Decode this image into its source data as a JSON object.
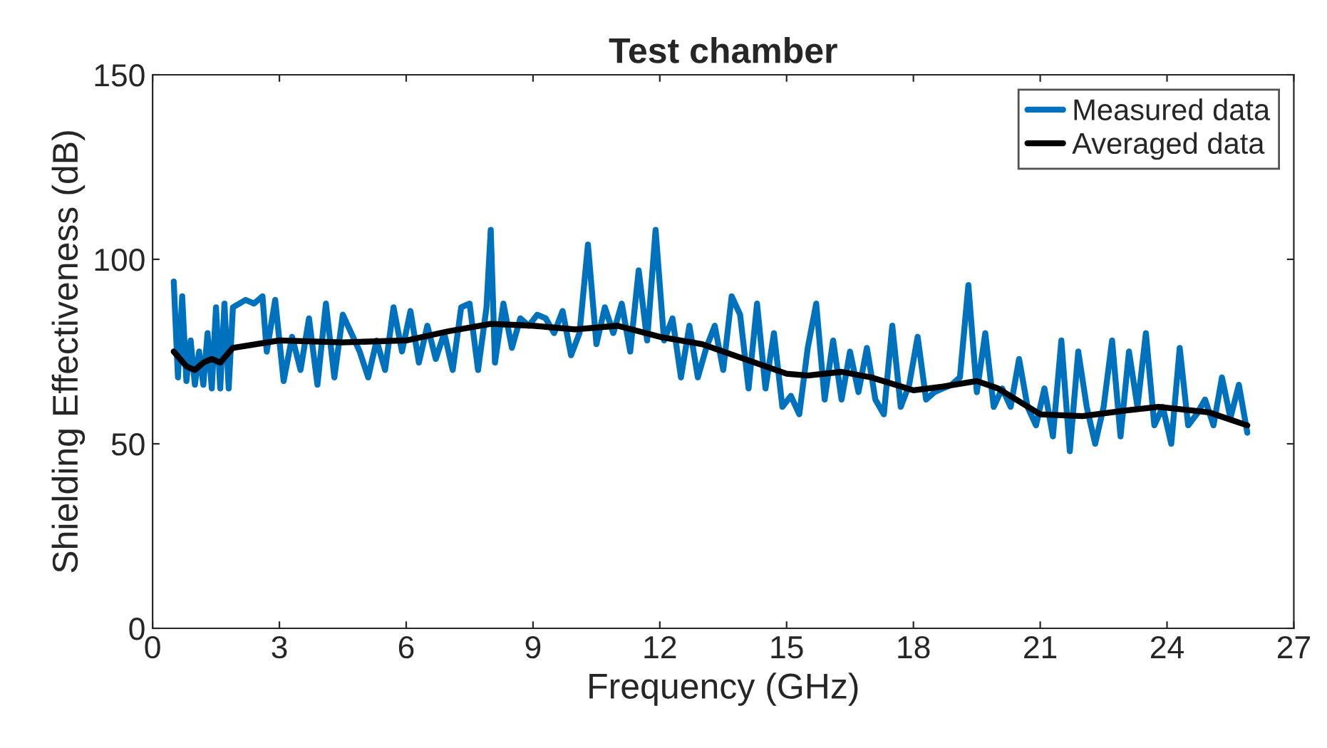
{
  "chart_data": {
    "type": "line",
    "title": "Test chamber",
    "xlabel": "Frequency (GHz)",
    "ylabel": "Shielding Effectiveness (dB)",
    "xlim": [
      0,
      27
    ],
    "xticks": [
      0,
      3,
      6,
      9,
      12,
      15,
      18,
      21,
      24,
      27
    ],
    "ylim": [
      0,
      150
    ],
    "yticks": [
      0,
      50,
      100,
      150
    ],
    "grid": false,
    "legend": "top right",
    "line_style": "solid",
    "marker": "none",
    "series": [
      {
        "name": "Measured data",
        "color": "#0072bd",
        "x": [
          0.5,
          0.6,
          0.7,
          0.8,
          0.9,
          1.0,
          1.1,
          1.2,
          1.3,
          1.4,
          1.5,
          1.6,
          1.7,
          1.8,
          1.9,
          2.2,
          2.4,
          2.6,
          2.7,
          2.9,
          3.1,
          3.3,
          3.5,
          3.7,
          3.9,
          4.1,
          4.3,
          4.5,
          4.7,
          4.9,
          5.1,
          5.3,
          5.5,
          5.7,
          5.9,
          6.1,
          6.3,
          6.5,
          6.7,
          6.9,
          7.1,
          7.3,
          7.5,
          7.7,
          7.9,
          8.0,
          8.1,
          8.3,
          8.5,
          8.7,
          8.9,
          9.1,
          9.3,
          9.5,
          9.7,
          9.9,
          10.1,
          10.3,
          10.5,
          10.7,
          10.9,
          11.1,
          11.3,
          11.5,
          11.7,
          11.9,
          12.1,
          12.3,
          12.5,
          12.7,
          12.9,
          13.1,
          13.3,
          13.5,
          13.7,
          13.9,
          14.1,
          14.3,
          14.5,
          14.7,
          14.9,
          15.1,
          15.3,
          15.5,
          15.7,
          15.9,
          16.1,
          16.3,
          16.5,
          16.7,
          16.9,
          17.1,
          17.3,
          17.5,
          17.7,
          17.9,
          18.1,
          18.3,
          18.5,
          18.7,
          18.9,
          19.1,
          19.3,
          19.5,
          19.7,
          19.9,
          20.1,
          20.3,
          20.5,
          20.7,
          20.9,
          21.1,
          21.3,
          21.5,
          21.7,
          21.9,
          22.1,
          22.3,
          22.5,
          22.7,
          22.9,
          23.1,
          23.3,
          23.5,
          23.7,
          23.9,
          24.1,
          24.3,
          24.5,
          24.7,
          24.9,
          25.1,
          25.3,
          25.5,
          25.7,
          25.9
        ],
        "values": [
          94,
          68,
          90,
          67,
          78,
          66,
          75,
          66,
          80,
          65,
          87,
          65,
          88,
          65,
          87,
          89,
          88,
          90,
          75,
          89,
          67,
          79,
          70,
          84,
          66,
          88,
          68,
          85,
          80,
          75,
          68,
          78,
          70,
          87,
          75,
          86,
          72,
          82,
          73,
          80,
          70,
          87,
          88,
          70,
          87,
          108,
          72,
          88,
          76,
          84,
          82,
          85,
          84,
          80,
          86,
          74,
          80,
          104,
          77,
          87,
          80,
          88,
          75,
          97,
          78,
          108,
          78,
          84,
          68,
          82,
          68,
          76,
          82,
          70,
          90,
          85,
          65,
          88,
          65,
          80,
          60,
          63,
          58,
          76,
          88,
          62,
          78,
          62,
          75,
          64,
          76,
          62,
          58,
          82,
          60,
          66,
          79,
          62,
          64,
          65,
          66,
          68,
          93,
          64,
          80,
          60,
          65,
          60,
          73,
          60,
          55,
          65,
          52,
          78,
          48,
          75,
          60,
          50,
          60,
          78,
          52,
          75,
          60,
          80,
          55,
          60,
          50,
          76,
          55,
          58,
          62,
          55,
          68,
          57,
          66,
          53
        ]
      },
      {
        "name": "Averaged data",
        "color": "#000000",
        "x": [
          0.5,
          0.8,
          1.0,
          1.2,
          1.4,
          1.6,
          1.9,
          3,
          4.5,
          6,
          7,
          8,
          9,
          10,
          11,
          12,
          13,
          14,
          15,
          15.5,
          16.3,
          17,
          18,
          18.7,
          19.5,
          20,
          21,
          22,
          23,
          23.8,
          25,
          25.9
        ],
        "values": [
          75,
          71,
          70,
          72,
          73,
          72,
          76,
          78,
          77.5,
          78,
          80.5,
          82.5,
          82,
          81,
          82,
          79,
          77,
          73,
          69,
          68.5,
          69.5,
          68,
          64.5,
          65.5,
          67,
          65,
          58,
          57.5,
          59,
          60,
          58.5,
          55
        ]
      }
    ]
  }
}
